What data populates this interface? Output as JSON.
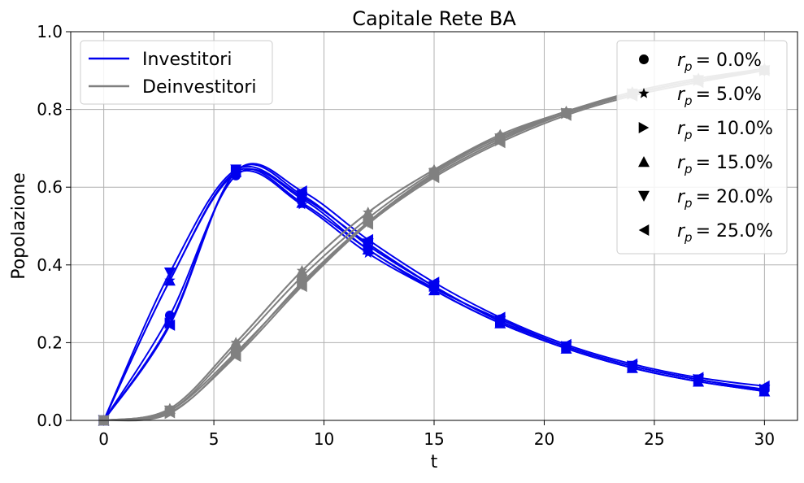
{
  "chart_data": {
    "type": "line",
    "title": "Capitale Rete BA",
    "xlabel": "t",
    "ylabel": "Popolazione",
    "xlim": [
      -1.5,
      31.5
    ],
    "ylim": [
      0,
      1.0
    ],
    "xticks": [
      0,
      5,
      10,
      15,
      20,
      25,
      30
    ],
    "yticks": [
      0.0,
      0.2,
      0.4,
      0.6,
      0.8,
      1.0
    ],
    "grid": true,
    "legend_groups": {
      "location": "top-left",
      "entries": [
        {
          "label": "Investitori",
          "color": "#0000ee"
        },
        {
          "label": "Deinvestitori",
          "color": "#808080"
        }
      ]
    },
    "legend_rates": {
      "location": "top-right",
      "entries": [
        {
          "marker": "circle",
          "prefix": "r",
          "sub": "p",
          "value": "= 0.0%"
        },
        {
          "marker": "star",
          "prefix": "r",
          "sub": "p",
          "value": "= 5.0%"
        },
        {
          "marker": "triangle-right",
          "prefix": "r",
          "sub": "p",
          "value": "= 10.0%"
        },
        {
          "marker": "triangle-up",
          "prefix": "r",
          "sub": "p",
          "value": "= 15.0%"
        },
        {
          "marker": "triangle-down",
          "prefix": "r",
          "sub": "p",
          "value": "= 20.0%"
        },
        {
          "marker": "triangle-left",
          "prefix": "r",
          "sub": "p",
          "value": "= 25.0%"
        }
      ]
    },
    "x": [
      0,
      3,
      6,
      9,
      12,
      15,
      18,
      21,
      24,
      27,
      30
    ],
    "series": [
      {
        "group": "Investitori",
        "rate": "0.0%",
        "marker": "circle",
        "color": "#0000ee",
        "values": [
          0.0,
          0.27,
          0.63,
          0.57,
          0.44,
          0.34,
          0.26,
          0.19,
          0.14,
          0.105,
          0.078
        ]
      },
      {
        "group": "Investitori",
        "rate": "5.0%",
        "marker": "star",
        "color": "#0000ee",
        "values": [
          0.0,
          0.36,
          0.635,
          0.555,
          0.43,
          0.335,
          0.25,
          0.185,
          0.135,
          0.1,
          0.075
        ]
      },
      {
        "group": "Investitori",
        "rate": "10.0%",
        "marker": "triangle-right",
        "color": "#0000ee",
        "values": [
          0.0,
          0.25,
          0.64,
          0.58,
          0.45,
          0.345,
          0.255,
          0.19,
          0.14,
          0.105,
          0.08
        ]
      },
      {
        "group": "Investitori",
        "rate": "15.0%",
        "marker": "triangle-up",
        "color": "#0000ee",
        "values": [
          0.0,
          0.36,
          0.64,
          0.56,
          0.44,
          0.335,
          0.25,
          0.185,
          0.135,
          0.1,
          0.075
        ]
      },
      {
        "group": "Investitori",
        "rate": "20.0%",
        "marker": "triangle-down",
        "color": "#0000ee",
        "values": [
          0.0,
          0.38,
          0.645,
          0.575,
          0.455,
          0.345,
          0.255,
          0.19,
          0.14,
          0.105,
          0.078
        ]
      },
      {
        "group": "Investitori",
        "rate": "25.0%",
        "marker": "triangle-left",
        "color": "#0000ee",
        "values": [
          0.0,
          0.245,
          0.64,
          0.59,
          0.465,
          0.355,
          0.265,
          0.195,
          0.145,
          0.11,
          0.088
        ]
      },
      {
        "group": "Deinvestitori",
        "rate": "0.0%",
        "marker": "circle",
        "color": "#808080",
        "values": [
          0.0,
          0.025,
          0.19,
          0.37,
          0.52,
          0.64,
          0.73,
          0.79,
          0.84,
          0.875,
          0.9
        ]
      },
      {
        "group": "Deinvestitori",
        "rate": "5.0%",
        "marker": "star",
        "color": "#808080",
        "values": [
          0.0,
          0.03,
          0.2,
          0.385,
          0.535,
          0.645,
          0.73,
          0.795,
          0.84,
          0.875,
          0.905
        ]
      },
      {
        "group": "Deinvestitori",
        "rate": "10.0%",
        "marker": "triangle-right",
        "color": "#808080",
        "values": [
          0.0,
          0.018,
          0.17,
          0.355,
          0.51,
          0.63,
          0.72,
          0.79,
          0.84,
          0.875,
          0.9
        ]
      },
      {
        "group": "Deinvestitori",
        "rate": "15.0%",
        "marker": "triangle-up",
        "color": "#808080",
        "values": [
          0.0,
          0.03,
          0.2,
          0.385,
          0.535,
          0.645,
          0.735,
          0.795,
          0.845,
          0.88,
          0.905
        ]
      },
      {
        "group": "Deinvestitori",
        "rate": "20.0%",
        "marker": "triangle-down",
        "color": "#808080",
        "values": [
          0.0,
          0.025,
          0.175,
          0.35,
          0.51,
          0.635,
          0.725,
          0.79,
          0.84,
          0.875,
          0.9
        ]
      },
      {
        "group": "Deinvestitori",
        "rate": "25.0%",
        "marker": "triangle-left",
        "color": "#808080",
        "values": [
          0.0,
          0.02,
          0.165,
          0.345,
          0.505,
          0.625,
          0.715,
          0.785,
          0.835,
          0.87,
          0.9
        ]
      }
    ]
  }
}
